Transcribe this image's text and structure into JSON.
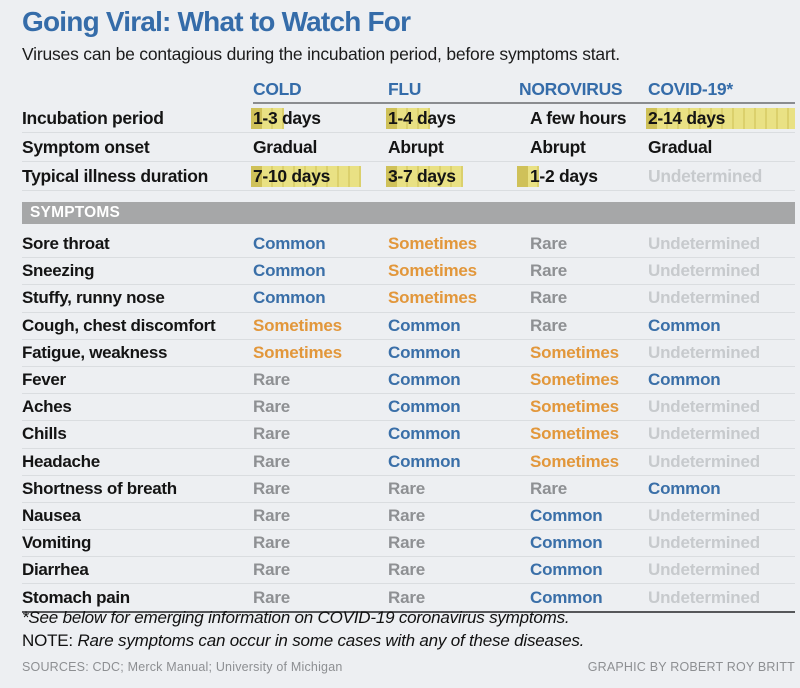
{
  "header": {
    "title": "Going Viral: What to Watch For",
    "subtitle": "Viruses can be contagious during the incubation period, before symptoms start."
  },
  "columns": [
    "COLD",
    "FLU",
    "NOROVIRUS",
    "COVID-19*"
  ],
  "chart_data": {
    "type": "table",
    "title": "Going Viral: What to Watch For",
    "subtitle": "Viruses can be contagious during the incubation period, before symptoms start.",
    "columns": [
      "COLD",
      "FLU",
      "NOROVIRUS",
      "COVID-19*"
    ],
    "overview_rows": [
      {
        "label": "Incubation period",
        "cells": [
          {
            "text": "1-3 days",
            "bar_days": 3
          },
          {
            "text": "1-4 days",
            "bar_days": 4
          },
          {
            "text": "A few hours",
            "bar_days": 0
          },
          {
            "text": "2-14 days",
            "bar_days": 14
          }
        ]
      },
      {
        "label": "Symptom onset",
        "cells": [
          {
            "text": "Gradual",
            "bar_days": 0
          },
          {
            "text": "Abrupt",
            "bar_days": 0
          },
          {
            "text": "Abrupt",
            "bar_days": 0
          },
          {
            "text": "Gradual",
            "bar_days": 0
          }
        ]
      },
      {
        "label": "Typical illness duration",
        "cells": [
          {
            "text": "7-10 days",
            "bar_days": 10
          },
          {
            "text": "3-7 days",
            "bar_days": 7
          },
          {
            "text": "1-2 days",
            "bar_days": 2
          },
          {
            "text": "Undetermined",
            "bar_days": 0,
            "muted": true
          }
        ]
      }
    ],
    "symptoms_band_label": "SYMPTOMS",
    "symptom_rows": [
      {
        "label": "Sore throat",
        "values": [
          "Common",
          "Sometimes",
          "Rare",
          "Undetermined"
        ]
      },
      {
        "label": "Sneezing",
        "values": [
          "Common",
          "Sometimes",
          "Rare",
          "Undetermined"
        ]
      },
      {
        "label": "Stuffy, runny nose",
        "values": [
          "Common",
          "Sometimes",
          "Rare",
          "Undetermined"
        ]
      },
      {
        "label": "Cough, chest discomfort",
        "values": [
          "Sometimes",
          "Common",
          "Rare",
          "Common"
        ]
      },
      {
        "label": "Fatigue, weakness",
        "values": [
          "Sometimes",
          "Common",
          "Sometimes",
          "Undetermined"
        ]
      },
      {
        "label": "Fever",
        "values": [
          "Rare",
          "Common",
          "Sometimes",
          "Common"
        ]
      },
      {
        "label": "Aches",
        "values": [
          "Rare",
          "Common",
          "Sometimes",
          "Undetermined"
        ]
      },
      {
        "label": "Chills",
        "values": [
          "Rare",
          "Common",
          "Sometimes",
          "Undetermined"
        ]
      },
      {
        "label": "Headache",
        "values": [
          "Rare",
          "Common",
          "Sometimes",
          "Undetermined"
        ]
      },
      {
        "label": "Shortness of breath",
        "values": [
          "Rare",
          "Rare",
          "Rare",
          "Common"
        ]
      },
      {
        "label": "Nausea",
        "values": [
          "Rare",
          "Rare",
          "Common",
          "Undetermined"
        ]
      },
      {
        "label": "Vomiting",
        "values": [
          "Rare",
          "Rare",
          "Common",
          "Undetermined"
        ]
      },
      {
        "label": "Diarrhea",
        "values": [
          "Rare",
          "Rare",
          "Common",
          "Undetermined"
        ]
      },
      {
        "label": "Stomach pain",
        "values": [
          "Rare",
          "Rare",
          "Common",
          "Undetermined"
        ]
      }
    ]
  },
  "notes": {
    "line1": "*See below for emerging information on COVID-19 coronavirus symptoms.",
    "line2_prefix": "NOTE:",
    "line2_rest": " Rare symptoms can occur in some cases with any of these diseases."
  },
  "credits": {
    "sources": "SOURCES: CDC; Merck Manual; University of Michigan",
    "byline": "GRAPHIC BY ROBERT ROY BRITT"
  },
  "colors": {
    "bg": "#edeff2",
    "accent": "#356ca9",
    "common": "#3a6fa8",
    "sometimes": "#e2973b",
    "rare": "#8e9093",
    "undetermined": "#c7cacd",
    "band": "#a6a7a8",
    "bar": "#e9e184",
    "bardiv": "#dbd06c",
    "barfirst": "#cfc159"
  }
}
